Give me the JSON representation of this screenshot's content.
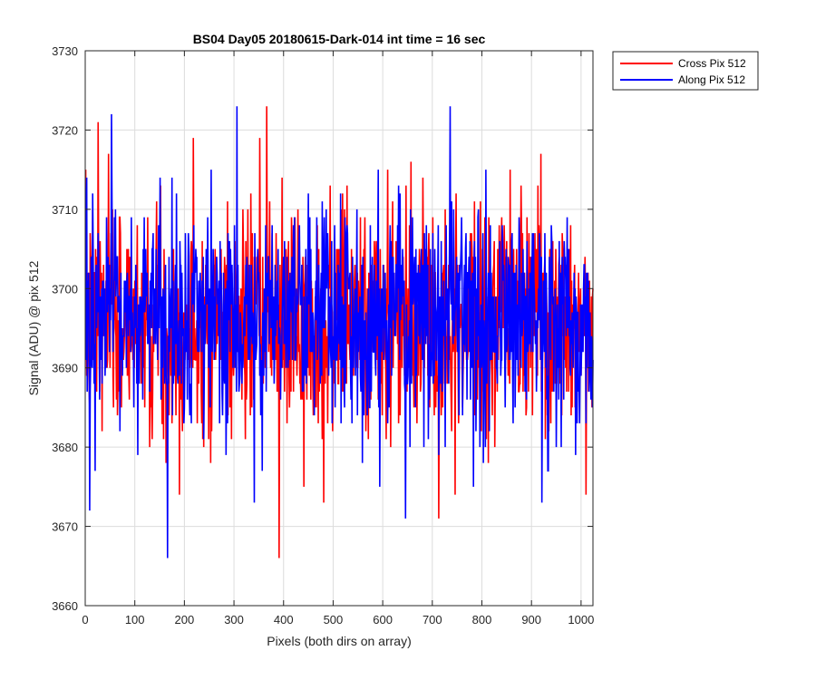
{
  "chart_data": {
    "type": "line",
    "title": "BS04 Day05 20180615-Dark-014 int time = 16 sec",
    "xlabel": "Pixels (both dirs on array)",
    "ylabel": "Signal (ADU) @ pix 512",
    "xlim": [
      0,
      1024
    ],
    "ylim": [
      3660,
      3730
    ],
    "xticks": [
      0,
      100,
      200,
      300,
      400,
      500,
      600,
      700,
      800,
      900,
      1000
    ],
    "yticks": [
      3660,
      3670,
      3680,
      3690,
      3700,
      3710,
      3720,
      3730
    ],
    "grid": true,
    "legend_position": "outside top-right",
    "series": [
      {
        "name": "Cross Pix 512",
        "color": "#ff0000",
        "noise": {
          "n_points": 1024,
          "mean": 3696,
          "std": 7,
          "seed": 7
        },
        "extremes": [
          [
            25,
            3721
          ],
          [
            365,
            3723
          ],
          [
            390,
            3666
          ],
          [
            745,
            3674
          ],
          [
            480,
            3673
          ],
          [
            440,
            3675
          ],
          [
            162,
            3678
          ]
        ]
      },
      {
        "name": "Along Pix 512",
        "color": "#0000ff",
        "noise": {
          "n_points": 1024,
          "mean": 3696,
          "std": 7,
          "seed": 13
        },
        "extremes": [
          [
            52,
            3722
          ],
          [
            305,
            3723
          ],
          [
            165,
            3666
          ],
          [
            735,
            3723
          ],
          [
            645,
            3671
          ],
          [
            8,
            3672
          ],
          [
            920,
            3673
          ],
          [
            340,
            3673
          ]
        ]
      }
    ]
  }
}
